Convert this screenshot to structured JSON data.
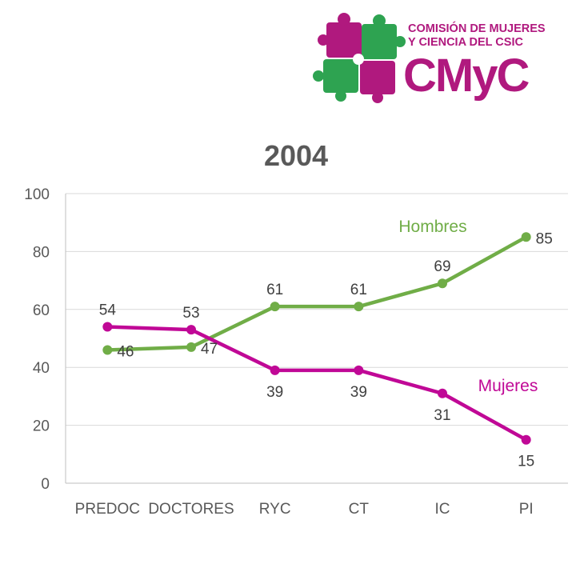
{
  "logo": {
    "line1": "COMISIÓN DE MUJERES",
    "line2": "Y CIENCIA DEL CSIC",
    "brand": "CMyC",
    "magenta": "#b0197e",
    "green": "#2ea351"
  },
  "chart_data": {
    "type": "line",
    "title": "2004",
    "xlabel": "",
    "ylabel": "",
    "categories": [
      "PREDOC",
      "DOCTORES",
      "RYC",
      "CT",
      "IC",
      "PI"
    ],
    "ylim": [
      0,
      100
    ],
    "yticks": [
      0,
      20,
      40,
      60,
      80,
      100
    ],
    "grid": true,
    "series": [
      {
        "name": "Hombres",
        "values": [
          46,
          47,
          61,
          61,
          69,
          85
        ],
        "color": "#70ad47",
        "label_position": [
          "right",
          "right",
          "above",
          "above",
          "above",
          "right"
        ]
      },
      {
        "name": "Mujeres",
        "values": [
          54,
          53,
          39,
          39,
          31,
          15
        ],
        "color": "#c00896",
        "label_position": [
          "above",
          "above",
          "below",
          "below",
          "below",
          "below"
        ]
      }
    ]
  }
}
